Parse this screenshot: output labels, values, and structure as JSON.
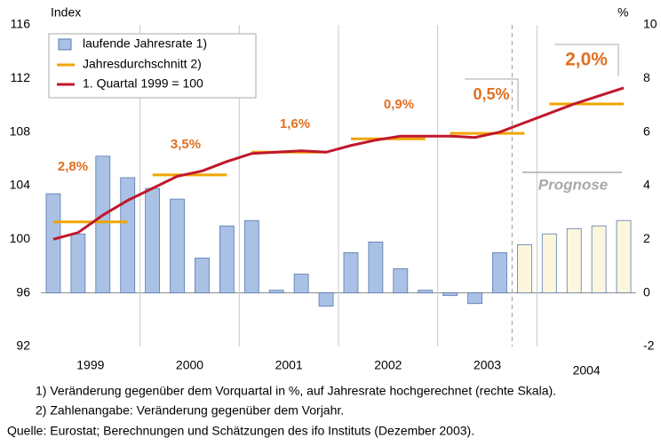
{
  "chart_data": {
    "type": "bar-line",
    "y_label": "Index",
    "y2_label": "%",
    "groups": [
      "1999",
      "2000",
      "2001",
      "2002",
      "2003",
      "2004"
    ],
    "ylim": [
      92,
      116
    ],
    "yticks": [
      92,
      96,
      100,
      104,
      108,
      112,
      116
    ],
    "y2lim": [
      -2,
      10
    ],
    "y2ticks": [
      -2,
      0,
      2,
      4,
      6,
      8,
      10
    ],
    "series": [
      {
        "name": "laufende Jahresrate 1)",
        "axis": "y2",
        "kind": "bar",
        "color": "#a9c1e5",
        "colors": [
          "#a9c1e5",
          "#a9c1e5",
          "#a9c1e5",
          "#a9c1e5",
          "#a9c1e5",
          "#a9c1e5",
          "#a9c1e5",
          "#a9c1e5",
          "#a9c1e5",
          "#a9c1e5",
          "#a9c1e5",
          "#a9c1e5",
          "#a9c1e5",
          "#a9c1e5",
          "#a9c1e5",
          "#a9c1e5",
          "#a9c1e5",
          "#a9c1e5",
          "#a9c1e5",
          "#fcf7dc",
          "#fcf7dc",
          "#fcf7dc",
          "#fcf7dc",
          "#fcf7dc"
        ],
        "values": [
          3.7,
          2.2,
          5.1,
          4.3,
          3.9,
          3.5,
          1.3,
          2.5,
          2.7,
          0.1,
          0.7,
          -0.5,
          1.5,
          1.9,
          0.9,
          0.1,
          -0.1,
          -0.4,
          1.5,
          1.8,
          2.2,
          2.4,
          2.5,
          2.7
        ]
      },
      {
        "name": "Jahresdurchschnitt 2)",
        "kind": "annual",
        "color": "#f0a500",
        "values": [
          101.3,
          104.8,
          106.5,
          107.5,
          107.9,
          110.1
        ]
      },
      {
        "name": "1. Quartal 1999 = 100",
        "kind": "line",
        "color": "#c0172c",
        "values": [
          100.0,
          100.5,
          101.8,
          102.9,
          103.8,
          104.7,
          105.1,
          105.8,
          106.4,
          106.5,
          106.6,
          106.5,
          107.0,
          107.4,
          107.7,
          107.7,
          107.7,
          107.6,
          108.0,
          108.7,
          109.4,
          110.1,
          110.7,
          111.3
        ]
      }
    ],
    "annotations": [
      "2,8%",
      "3,5%",
      "1,6%",
      "0,9%",
      "0,5%",
      "2,0%"
    ],
    "forecast_label": "Prognose",
    "footnotes": [
      "1) Veränderung gegenüber dem Vorquartal in %, auf Jahresrate hochgerechnet (rechte Skala).",
      "2) Zahlenangabe: Veränderung gegenüber dem Vorjahr.",
      "Quelle: Eurostat; Berechnungen und Schätzungen des ifo Instituts (Dezember 2003)."
    ]
  }
}
